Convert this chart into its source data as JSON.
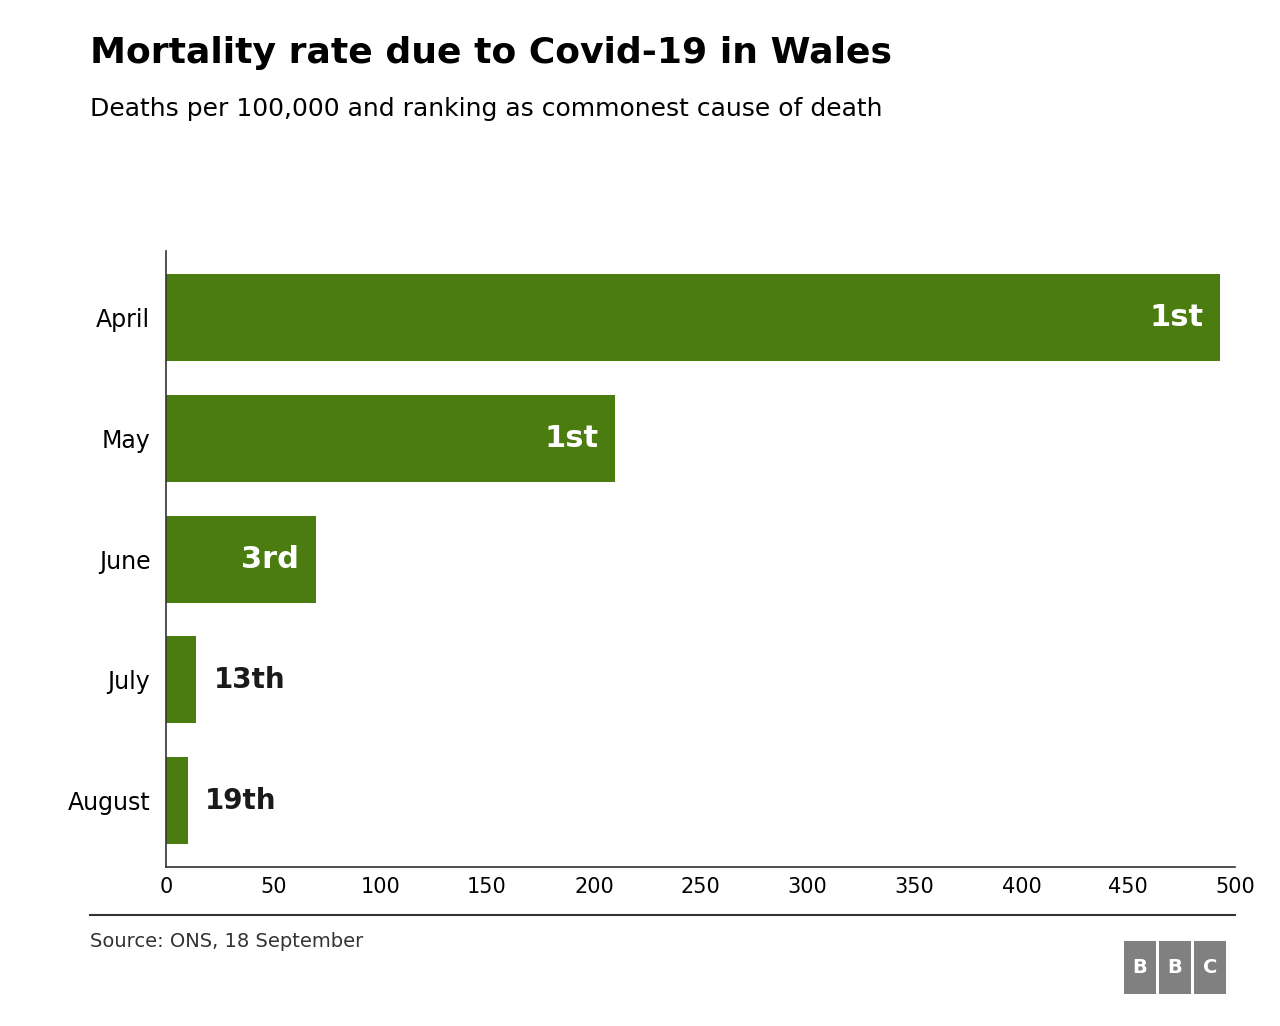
{
  "title": "Mortality rate due to Covid-19 in Wales",
  "subtitle": "Deaths per 100,000 and ranking as commonest cause of death",
  "categories": [
    "April",
    "May",
    "June",
    "July",
    "August"
  ],
  "values": [
    493,
    210,
    70,
    14,
    10
  ],
  "rankings": [
    "1st",
    "1st",
    "3rd",
    "13th",
    "19th"
  ],
  "bar_color": "#4a7c10",
  "text_color_inside": "#ffffff",
  "text_color_outside": "#1a1a1a",
  "source_text": "Source: ONS, 18 September",
  "xlim": [
    0,
    500
  ],
  "xticks": [
    0,
    50,
    100,
    150,
    200,
    250,
    300,
    350,
    400,
    450,
    500
  ],
  "background_color": "#ffffff",
  "title_fontsize": 26,
  "subtitle_fontsize": 18,
  "label_fontsize": 17,
  "tick_fontsize": 15,
  "source_fontsize": 14,
  "ranking_fontsize_inside": 22,
  "ranking_fontsize_outside": 20,
  "bar_height": 0.72,
  "inside_threshold": 60
}
